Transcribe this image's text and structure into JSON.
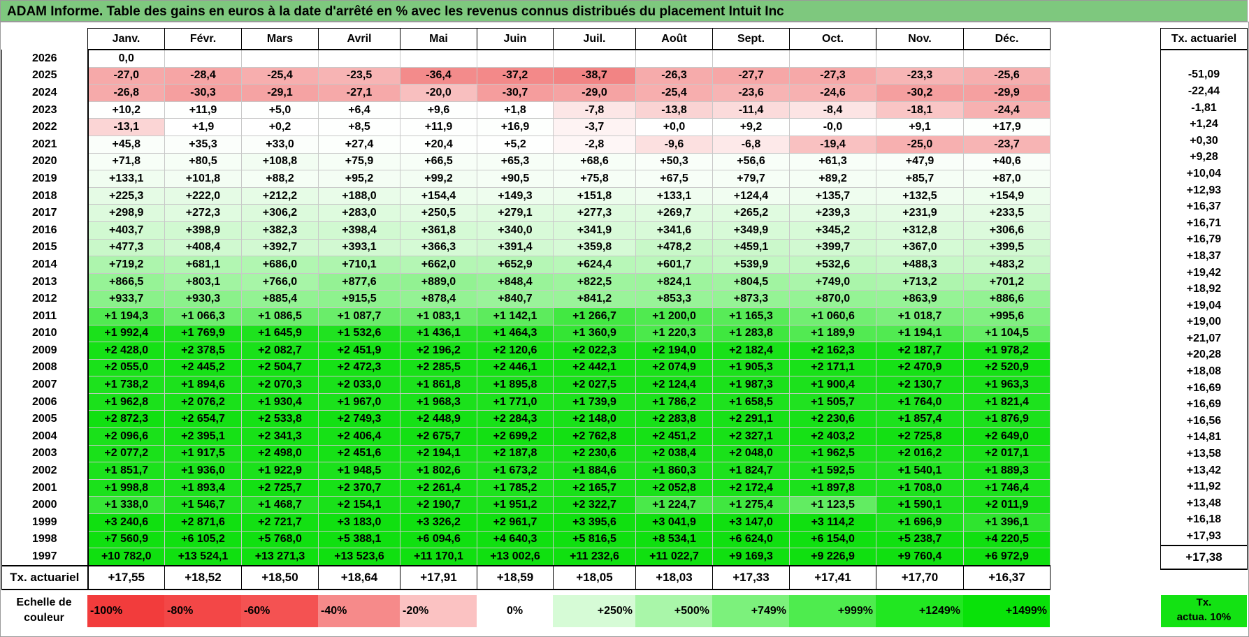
{
  "title": "ADAM Informe. Table des gains en euros à la date d'arrêté en % avec les revenus connus distribués du placement Intuit Inc",
  "months": [
    "Janv.",
    "Févr.",
    "Mars",
    "Avril",
    "Mai",
    "Juin",
    "Juil.",
    "Août",
    "Sept.",
    "Oct.",
    "Nov.",
    "Déc."
  ],
  "side_header": "Tx. actuariel",
  "rows": [
    {
      "year": "2026",
      "values": [
        "0,0",
        "",
        "",
        "",
        "",
        "",
        "",
        "",
        "",
        "",
        "",
        ""
      ],
      "tx": ""
    },
    {
      "year": "2025",
      "values": [
        "-27,0",
        "-28,4",
        "-25,4",
        "-23,5",
        "-36,4",
        "-37,2",
        "-38,7",
        "-26,3",
        "-27,7",
        "-27,3",
        "-23,3",
        "-25,6"
      ],
      "tx": "-51,09"
    },
    {
      "year": "2024",
      "values": [
        "-26,8",
        "-30,3",
        "-29,1",
        "-27,1",
        "-20,0",
        "-30,7",
        "-29,0",
        "-25,4",
        "-23,6",
        "-24,6",
        "-30,2",
        "-29,9"
      ],
      "tx": "-22,44"
    },
    {
      "year": "2023",
      "values": [
        "+10,2",
        "+11,9",
        "+5,0",
        "+6,4",
        "+9,6",
        "+1,8",
        "-7,8",
        "-13,8",
        "-11,4",
        "-8,4",
        "-18,1",
        "-24,4"
      ],
      "tx": "-1,81"
    },
    {
      "year": "2022",
      "values": [
        "-13,1",
        "+1,9",
        "+0,2",
        "+8,5",
        "+11,9",
        "+16,9",
        "-3,7",
        "+0,0",
        "+9,2",
        "-0,0",
        "+9,1",
        "+17,9"
      ],
      "tx": "+1,24"
    },
    {
      "year": "2021",
      "values": [
        "+45,8",
        "+35,3",
        "+33,0",
        "+27,4",
        "+20,4",
        "+5,2",
        "-2,8",
        "-9,6",
        "-6,8",
        "-19,4",
        "-25,0",
        "-23,7"
      ],
      "tx": "+0,30"
    },
    {
      "year": "2020",
      "values": [
        "+71,8",
        "+80,5",
        "+108,8",
        "+75,9",
        "+66,5",
        "+65,3",
        "+68,6",
        "+50,3",
        "+56,6",
        "+61,3",
        "+47,9",
        "+40,6"
      ],
      "tx": "+9,28"
    },
    {
      "year": "2019",
      "values": [
        "+133,1",
        "+101,8",
        "+88,2",
        "+95,2",
        "+99,2",
        "+90,5",
        "+75,8",
        "+67,5",
        "+79,7",
        "+89,2",
        "+85,7",
        "+87,0"
      ],
      "tx": "+10,04"
    },
    {
      "year": "2018",
      "values": [
        "+225,3",
        "+222,0",
        "+212,2",
        "+188,0",
        "+154,4",
        "+149,3",
        "+151,8",
        "+133,1",
        "+124,4",
        "+135,7",
        "+132,5",
        "+154,9"
      ],
      "tx": "+12,93"
    },
    {
      "year": "2017",
      "values": [
        "+298,9",
        "+272,3",
        "+306,2",
        "+283,0",
        "+250,5",
        "+279,1",
        "+277,3",
        "+269,7",
        "+265,2",
        "+239,3",
        "+231,9",
        "+233,5"
      ],
      "tx": "+16,37"
    },
    {
      "year": "2016",
      "values": [
        "+403,7",
        "+398,9",
        "+382,3",
        "+398,4",
        "+361,8",
        "+340,0",
        "+341,9",
        "+341,6",
        "+349,9",
        "+345,2",
        "+312,8",
        "+306,6"
      ],
      "tx": "+16,71"
    },
    {
      "year": "2015",
      "values": [
        "+477,3",
        "+408,4",
        "+392,7",
        "+393,1",
        "+366,3",
        "+391,4",
        "+359,8",
        "+478,2",
        "+459,1",
        "+399,7",
        "+367,0",
        "+399,5"
      ],
      "tx": "+16,79"
    },
    {
      "year": "2014",
      "values": [
        "+719,2",
        "+681,1",
        "+686,0",
        "+710,1",
        "+662,0",
        "+652,9",
        "+624,4",
        "+601,7",
        "+539,9",
        "+532,6",
        "+488,3",
        "+483,2"
      ],
      "tx": "+18,37"
    },
    {
      "year": "2013",
      "values": [
        "+866,5",
        "+803,1",
        "+766,0",
        "+877,6",
        "+889,0",
        "+848,4",
        "+822,5",
        "+824,1",
        "+804,5",
        "+749,0",
        "+713,2",
        "+701,2"
      ],
      "tx": "+19,42"
    },
    {
      "year": "2012",
      "values": [
        "+933,7",
        "+930,3",
        "+885,4",
        "+915,5",
        "+878,4",
        "+840,7",
        "+841,2",
        "+853,3",
        "+873,3",
        "+870,0",
        "+863,9",
        "+886,6"
      ],
      "tx": "+18,92"
    },
    {
      "year": "2011",
      "values": [
        "+1 194,3",
        "+1 066,3",
        "+1 086,5",
        "+1 087,7",
        "+1 083,1",
        "+1 142,1",
        "+1 266,7",
        "+1 200,0",
        "+1 165,3",
        "+1 060,6",
        "+1 018,7",
        "+995,6"
      ],
      "tx": "+19,04"
    },
    {
      "year": "2010",
      "values": [
        "+1 992,4",
        "+1 769,9",
        "+1 645,9",
        "+1 532,6",
        "+1 436,1",
        "+1 464,3",
        "+1 360,9",
        "+1 220,3",
        "+1 283,8",
        "+1 189,9",
        "+1 194,1",
        "+1 104,5"
      ],
      "tx": "+19,00"
    },
    {
      "year": "2009",
      "values": [
        "+2 428,0",
        "+2 378,5",
        "+2 082,7",
        "+2 451,9",
        "+2 196,2",
        "+2 120,6",
        "+2 022,3",
        "+2 194,0",
        "+2 182,4",
        "+2 162,3",
        "+2 187,7",
        "+1 978,2"
      ],
      "tx": "+21,07"
    },
    {
      "year": "2008",
      "values": [
        "+2 055,0",
        "+2 445,2",
        "+2 504,7",
        "+2 472,3",
        "+2 285,5",
        "+2 446,1",
        "+2 442,1",
        "+2 074,9",
        "+1 905,3",
        "+2 171,1",
        "+2 470,9",
        "+2 520,9"
      ],
      "tx": "+20,28"
    },
    {
      "year": "2007",
      "values": [
        "+1 738,2",
        "+1 894,6",
        "+2 070,3",
        "+2 033,0",
        "+1 861,8",
        "+1 895,8",
        "+2 027,5",
        "+2 124,4",
        "+1 987,3",
        "+1 900,4",
        "+2 130,7",
        "+1 963,3"
      ],
      "tx": "+18,08"
    },
    {
      "year": "2006",
      "values": [
        "+1 962,8",
        "+2 076,2",
        "+1 930,4",
        "+1 967,0",
        "+1 968,3",
        "+1 771,0",
        "+1 739,9",
        "+1 786,2",
        "+1 658,5",
        "+1 505,7",
        "+1 764,0",
        "+1 821,4"
      ],
      "tx": "+16,69"
    },
    {
      "year": "2005",
      "values": [
        "+2 872,3",
        "+2 654,7",
        "+2 533,8",
        "+2 749,3",
        "+2 448,9",
        "+2 284,3",
        "+2 148,0",
        "+2 283,8",
        "+2 291,1",
        "+2 230,6",
        "+1 857,4",
        "+1 876,9"
      ],
      "tx": "+16,69"
    },
    {
      "year": "2004",
      "values": [
        "+2 096,6",
        "+2 395,1",
        "+2 341,3",
        "+2 406,4",
        "+2 675,7",
        "+2 699,2",
        "+2 762,8",
        "+2 451,2",
        "+2 327,1",
        "+2 403,2",
        "+2 725,8",
        "+2 649,0"
      ],
      "tx": "+16,56"
    },
    {
      "year": "2003",
      "values": [
        "+2 077,2",
        "+1 917,5",
        "+2 498,0",
        "+2 451,6",
        "+2 194,1",
        "+2 187,8",
        "+2 230,6",
        "+2 038,4",
        "+2 048,0",
        "+1 962,5",
        "+2 016,2",
        "+2 017,1"
      ],
      "tx": "+14,81"
    },
    {
      "year": "2002",
      "values": [
        "+1 851,7",
        "+1 936,0",
        "+1 922,9",
        "+1 948,5",
        "+1 802,6",
        "+1 673,2",
        "+1 884,6",
        "+1 860,3",
        "+1 824,7",
        "+1 592,5",
        "+1 540,1",
        "+1 889,3"
      ],
      "tx": "+13,58"
    },
    {
      "year": "2001",
      "values": [
        "+1 998,8",
        "+1 893,4",
        "+2 725,7",
        "+2 370,7",
        "+2 261,4",
        "+1 785,2",
        "+2 165,7",
        "+2 052,8",
        "+2 172,4",
        "+1 897,8",
        "+1 708,0",
        "+1 746,4"
      ],
      "tx": "+13,42"
    },
    {
      "year": "2000",
      "values": [
        "+1 338,0",
        "+1 546,7",
        "+1 468,7",
        "+2 154,1",
        "+2 190,7",
        "+1 951,2",
        "+2 322,7",
        "+1 224,7",
        "+1 275,4",
        "+1 123,5",
        "+1 590,1",
        "+2 011,9"
      ],
      "tx": "+11,92"
    },
    {
      "year": "1999",
      "values": [
        "+3 240,6",
        "+2 871,6",
        "+2 721,7",
        "+3 183,0",
        "+3 326,2",
        "+2 961,7",
        "+3 395,6",
        "+3 041,9",
        "+3 147,0",
        "+3 114,2",
        "+1 696,9",
        "+1 396,1"
      ],
      "tx": "+13,48"
    },
    {
      "year": "1998",
      "values": [
        "+7 560,9",
        "+6 105,2",
        "+5 768,0",
        "+5 388,1",
        "+6 094,6",
        "+4 640,3",
        "+5 816,5",
        "+8 534,1",
        "+6 624,0",
        "+6 154,0",
        "+5 238,7",
        "+4 220,5"
      ],
      "tx": "+16,18"
    },
    {
      "year": "1997",
      "values": [
        "+10 782,0",
        "+13 524,1",
        "+13 271,3",
        "+13 523,6",
        "+11 170,1",
        "+13 002,6",
        "+11 232,6",
        "+11 022,7",
        "+9 169,3",
        "+9 226,9",
        "+9 760,4",
        "+6 972,9"
      ],
      "tx": "+17,93"
    }
  ],
  "tx_row": {
    "label": "Tx. actuariel",
    "values": [
      "+17,55",
      "+18,52",
      "+18,50",
      "+18,64",
      "+17,91",
      "+18,59",
      "+18,05",
      "+18,03",
      "+17,33",
      "+17,41",
      "+17,70",
      "+16,37"
    ],
    "overall": "+17,38"
  },
  "legend": {
    "label": "Echelle de\ncouleur",
    "items": [
      {
        "text": "-100%",
        "color": "#f23c3c",
        "align": "left"
      },
      {
        "text": "-80%",
        "color": "#f34747",
        "align": "left"
      },
      {
        "text": "-60%",
        "color": "#f45252",
        "align": "left"
      },
      {
        "text": "-40%",
        "color": "#f68a8a",
        "align": "left"
      },
      {
        "text": "-20%",
        "color": "#fbc2c2",
        "align": "left"
      },
      {
        "text": "0%",
        "color": "#ffffff",
        "align": "center"
      },
      {
        "text": "+250%",
        "color": "#d6fbd6",
        "align": "right"
      },
      {
        "text": "+500%",
        "color": "#a9f6a9",
        "align": "right"
      },
      {
        "text": "+749%",
        "color": "#7cf17c",
        "align": "right"
      },
      {
        "text": "+999%",
        "color": "#4eec4e",
        "align": "right"
      },
      {
        "text": "+1249%",
        "color": "#21e721",
        "align": "right"
      },
      {
        "text": "+1499%",
        "color": "#09e209",
        "align": "right"
      }
    ],
    "side": {
      "text": "Tx.\nactua. 10%",
      "color": "#13e213"
    }
  }
}
